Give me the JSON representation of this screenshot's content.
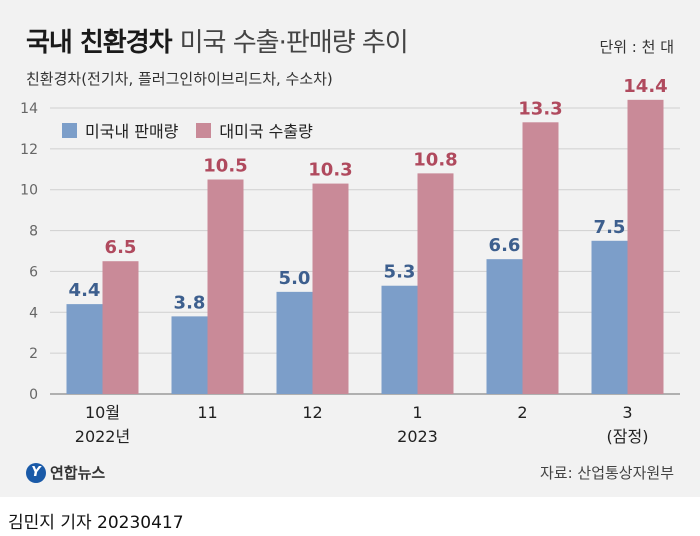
{
  "header": {
    "title_main": "국내 친환경차",
    "title_sub": "미국 수출·판매량 추이",
    "unit": "단위 : 천 대",
    "subtitle": "친환경차(전기차, 플러그인하이브리드차, 수소차)"
  },
  "footer": {
    "logo_text": "연합뉴스",
    "source": "자료: 산업통상자원부",
    "credit": "김민지 기자  20230417"
  },
  "chart_data": {
    "type": "bar",
    "categories": [
      [
        "10월",
        "2022년"
      ],
      [
        "11"
      ],
      [
        "12"
      ],
      [
        "1",
        "2023"
      ],
      [
        "2"
      ],
      [
        "3",
        "(잠정)"
      ]
    ],
    "series": [
      {
        "name": "미국내 판매량",
        "color": "#7c9ec9",
        "values": [
          4.4,
          3.8,
          5.0,
          5.3,
          6.6,
          7.5
        ]
      },
      {
        "name": "대미국 수출량",
        "color": "#c98a98",
        "values": [
          6.5,
          10.5,
          10.3,
          10.8,
          13.3,
          14.4
        ]
      }
    ],
    "value_labels": [
      [
        "4.4",
        "3.8",
        "5.0",
        "5.3",
        "6.6",
        "7.5"
      ],
      [
        "6.5",
        "10.5",
        "10.3",
        "10.8",
        "13.3",
        "14.4"
      ]
    ],
    "label_colors": [
      "#3d5f8e",
      "#b04a5e"
    ],
    "yticks": [
      "0",
      "2",
      "4",
      "6",
      "8",
      "10",
      "12",
      "14"
    ],
    "ylim": [
      0,
      14
    ],
    "grid": true,
    "legend": "top-left"
  }
}
